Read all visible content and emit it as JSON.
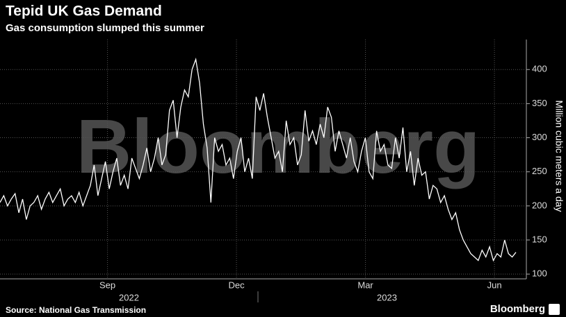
{
  "chart_data": {
    "type": "line",
    "title": "Tepid UK Gas Demand",
    "subtitle": "Gas consumption slumped this summer",
    "y_label": "Million cubic meters a day",
    "source": "Source: National Gas Transmission",
    "brand": "Bloomberg",
    "watermark": "Bloomberg",
    "color": "#ffffff",
    "grid": true,
    "xlim": [
      "2022-07",
      "2023-07"
    ],
    "xticks": [
      {
        "value": "2022-09",
        "label": "Sep"
      },
      {
        "value": "2022-12",
        "label": "Dec"
      },
      {
        "value": "2023-03",
        "label": "Mar"
      },
      {
        "value": "2023-06",
        "label": "Jun"
      }
    ],
    "years": [
      "2022",
      "2023"
    ],
    "ylim": [
      93,
      444
    ],
    "yticks": [
      100,
      150,
      200,
      250,
      300,
      350,
      400
    ],
    "values": [
      205,
      215,
      200,
      210,
      218,
      190,
      210,
      180,
      200,
      205,
      215,
      195,
      210,
      220,
      205,
      215,
      225,
      200,
      210,
      215,
      205,
      220,
      200,
      215,
      230,
      260,
      215,
      240,
      265,
      225,
      250,
      270,
      230,
      245,
      225,
      270,
      255,
      240,
      260,
      285,
      250,
      270,
      300,
      260,
      275,
      340,
      355,
      300,
      345,
      370,
      360,
      400,
      415,
      380,
      320,
      285,
      205,
      300,
      280,
      290,
      260,
      270,
      240,
      280,
      300,
      250,
      270,
      240,
      360,
      340,
      365,
      330,
      300,
      270,
      280,
      250,
      325,
      290,
      300,
      260,
      275,
      340,
      295,
      310,
      290,
      320,
      300,
      345,
      330,
      280,
      310,
      290,
      270,
      300,
      265,
      250,
      280,
      300,
      250,
      240,
      310,
      280,
      290,
      260,
      255,
      300,
      270,
      315,
      250,
      280,
      230,
      270,
      245,
      250,
      210,
      230,
      225,
      205,
      215,
      195,
      180,
      190,
      165,
      150,
      140,
      130,
      125,
      120,
      135,
      125,
      140,
      120,
      130,
      125,
      150,
      130,
      125,
      132
    ]
  }
}
